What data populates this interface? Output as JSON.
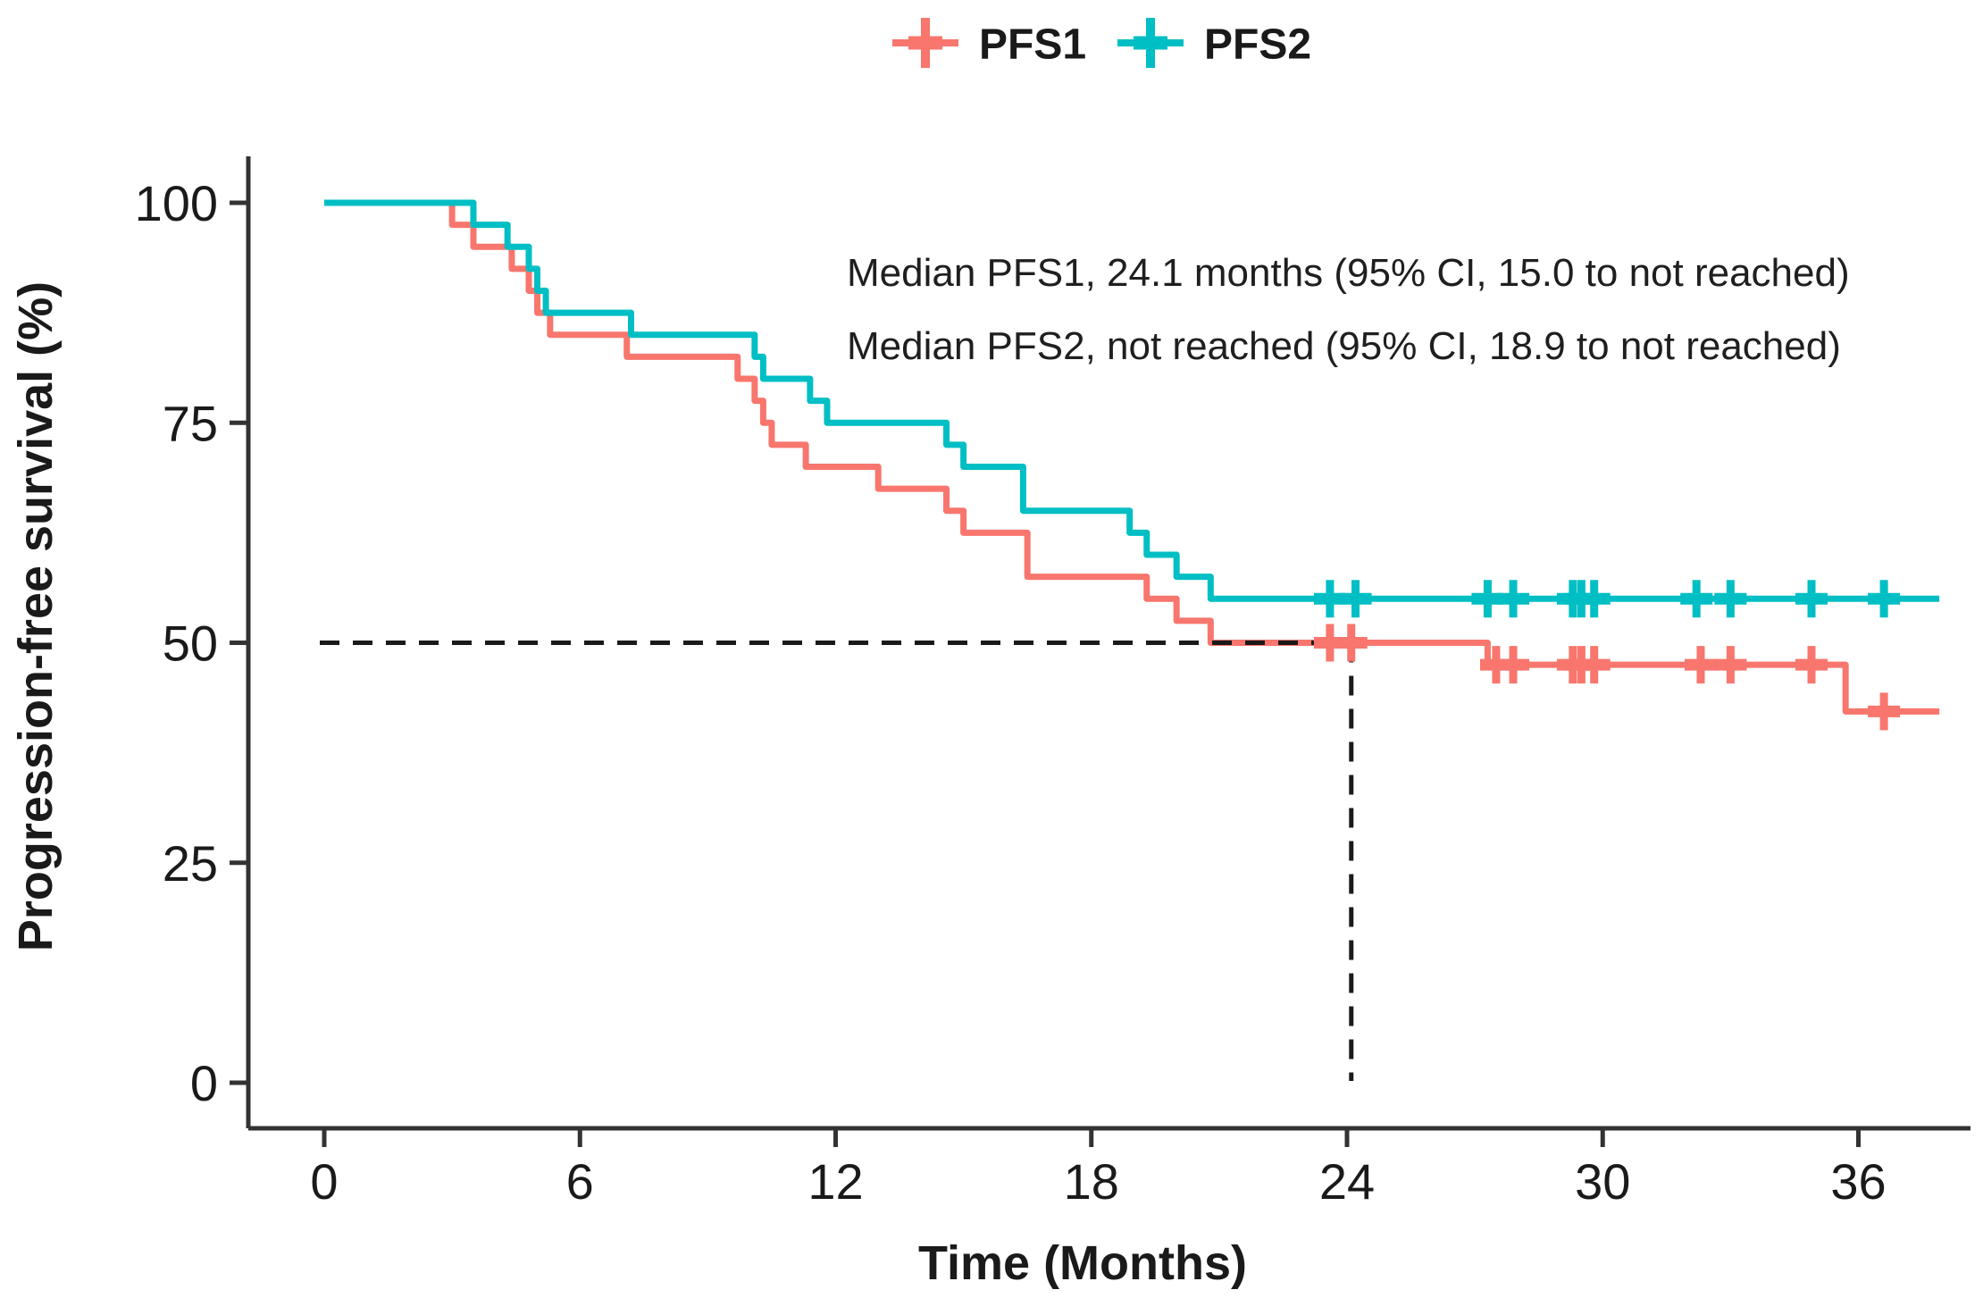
{
  "figure": {
    "background": "#ffffff"
  },
  "legend": {
    "items": [
      {
        "label": "PFS1",
        "color": "#F8766D"
      },
      {
        "label": "PFS2",
        "color": "#00BFC4"
      }
    ]
  },
  "annotations": {
    "median_pfs1": "Median PFS1, 24.1 months (95% CI, 15.0 to not reached)",
    "median_pfs2": "Median PFS2, not reached (95% CI, 18.9 to not reached)"
  },
  "axes": {
    "x": {
      "label": "Time (Months)"
    },
    "y": {
      "label": "Progression-free survival (%)"
    }
  },
  "chart_data": {
    "type": "line",
    "subtype": "kaplan_meier_step",
    "title": "",
    "xlabel": "Time (Months)",
    "ylabel": "Progression-free survival (%)",
    "xlim": [
      0,
      38.5
    ],
    "ylim": [
      0,
      100
    ],
    "x_ticks": [
      0,
      6,
      12,
      18,
      24,
      30,
      36
    ],
    "y_ticks": [
      0,
      25,
      50,
      75,
      100
    ],
    "grid": false,
    "legend_position": "top-center",
    "series": [
      {
        "name": "PFS1",
        "color": "#F8766D",
        "start": [
          0,
          100
        ],
        "end_x": 37.9,
        "steps": [
          [
            3.0,
            97.5
          ],
          [
            3.5,
            95.0
          ],
          [
            4.4,
            92.5
          ],
          [
            4.8,
            90.0
          ],
          [
            5.0,
            87.5
          ],
          [
            5.3,
            85.0
          ],
          [
            7.1,
            82.5
          ],
          [
            9.7,
            80.0
          ],
          [
            10.1,
            77.5
          ],
          [
            10.3,
            75.0
          ],
          [
            10.5,
            72.5
          ],
          [
            11.3,
            70.0
          ],
          [
            13.0,
            67.5
          ],
          [
            14.6,
            65.0
          ],
          [
            15.0,
            62.5
          ],
          [
            16.5,
            57.5
          ],
          [
            19.3,
            55.0
          ],
          [
            20.0,
            52.5
          ],
          [
            20.8,
            50.0
          ],
          [
            27.3,
            47.5
          ],
          [
            35.7,
            42.2
          ]
        ],
        "censor_times": [
          23.6,
          24.1,
          27.5,
          27.9,
          29.3,
          29.5,
          29.8,
          32.3,
          33.0,
          34.9,
          36.6
        ],
        "median_label": "Median PFS1, 24.1 months (95% CI, 15.0 to not reached)"
      },
      {
        "name": "PFS2",
        "color": "#00BFC4",
        "start": [
          0,
          100
        ],
        "end_x": 37.9,
        "steps": [
          [
            3.5,
            97.5
          ],
          [
            4.3,
            95.0
          ],
          [
            4.8,
            92.5
          ],
          [
            5.0,
            90.0
          ],
          [
            5.2,
            87.5
          ],
          [
            7.2,
            85.0
          ],
          [
            10.1,
            82.5
          ],
          [
            10.3,
            80.0
          ],
          [
            11.4,
            77.5
          ],
          [
            11.8,
            75.0
          ],
          [
            14.6,
            72.5
          ],
          [
            15.0,
            70.0
          ],
          [
            16.4,
            65.0
          ],
          [
            18.9,
            62.5
          ],
          [
            19.3,
            60.0
          ],
          [
            20.0,
            57.5
          ],
          [
            20.8,
            55.0
          ]
        ],
        "censor_times": [
          23.6,
          24.2,
          27.3,
          27.9,
          29.3,
          29.5,
          29.8,
          32.2,
          33.0,
          34.9,
          36.6
        ],
        "median_label": "Median PFS2, not reached (95% CI, 18.9 to not reached)"
      }
    ],
    "reference_lines": {
      "horizontal_y": 50,
      "vertical_x": 24.1
    },
    "colors": {
      "axis": "#333333",
      "text": "#1a1a1a",
      "dash": "#1a1a1a"
    }
  }
}
